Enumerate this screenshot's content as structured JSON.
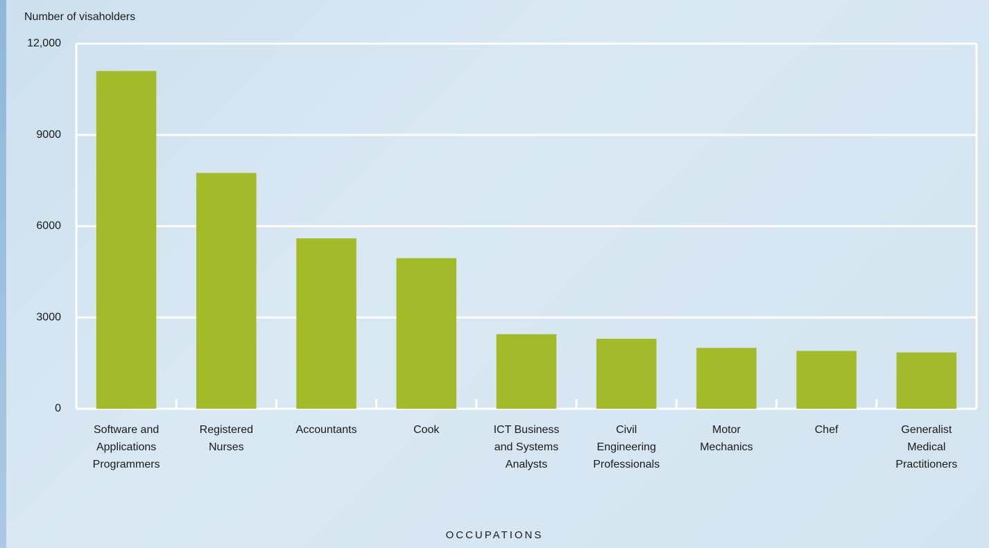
{
  "chart_data": {
    "type": "bar",
    "y_axis_label": "Number of visaholders",
    "x_axis_label": "OCCUPATIONS",
    "categories": [
      "Software and Applications Programmers",
      "Registered Nurses",
      "Accountants",
      "Cook",
      "ICT Business and Systems Analysts",
      "Civil Engineering Professionals",
      "Motor Mechanics",
      "Chef",
      "Generalist Medical Practitioners"
    ],
    "values": [
      11100,
      7750,
      5600,
      4950,
      2450,
      2300,
      2000,
      1900,
      1850
    ],
    "color": "#a3bb29",
    "ylim": [
      0,
      12000
    ],
    "yticks": [
      0,
      3000,
      6000,
      9000,
      {
        "value": 12000,
        "label": "12,000"
      }
    ],
    "grid": true
  }
}
